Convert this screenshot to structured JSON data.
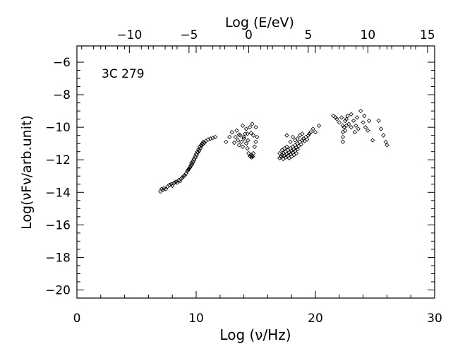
{
  "chart_data": {
    "type": "scatter",
    "title": "",
    "annotation": "3C 279",
    "xlabel": "Log (ν/Hz)",
    "ylabel": "Log(νFν/arb.unit)",
    "top_xlabel": "Log (E/eV)",
    "xlim": [
      0,
      30
    ],
    "ylim": [
      -20.5,
      -5
    ],
    "top_xlim": [
      -14.4,
      15.6
    ],
    "x_ticks": [
      0,
      10,
      20,
      30
    ],
    "y_ticks": [
      -20,
      -18,
      -16,
      -14,
      -12,
      -10,
      -8,
      -6
    ],
    "top_x_ticks": [
      -10,
      -5,
      0,
      5,
      10,
      15
    ],
    "tick_labels": {
      "x": [
        "0",
        "10",
        "20",
        "30"
      ],
      "y": [
        "−20",
        "−18",
        "−16",
        "−14",
        "−12",
        "−10",
        "−8",
        "−6"
      ],
      "top_x": [
        "−10",
        "−5",
        "0",
        "5",
        "10",
        "15"
      ]
    },
    "marker": "open-diamond",
    "color": "#000000",
    "grid": false,
    "points": [
      [
        7.0,
        -13.95
      ],
      [
        7.1,
        -13.8
      ],
      [
        7.2,
        -13.85
      ],
      [
        7.3,
        -13.75
      ],
      [
        7.45,
        -13.8
      ],
      [
        7.6,
        -13.65
      ],
      [
        7.75,
        -13.55
      ],
      [
        7.9,
        -13.5
      ],
      [
        8.0,
        -13.6
      ],
      [
        8.1,
        -13.45
      ],
      [
        8.2,
        -13.4
      ],
      [
        8.3,
        -13.35
      ],
      [
        8.4,
        -13.4
      ],
      [
        8.55,
        -13.25
      ],
      [
        8.65,
        -13.3
      ],
      [
        8.75,
        -13.15
      ],
      [
        8.85,
        -13.1
      ],
      [
        8.95,
        -13.0
      ],
      [
        9.05,
        -12.95
      ],
      [
        9.15,
        -12.85
      ],
      [
        9.25,
        -12.7
      ],
      [
        9.35,
        -12.6
      ],
      [
        9.45,
        -12.5
      ],
      [
        9.55,
        -12.35
      ],
      [
        9.6,
        -12.2
      ],
      [
        9.7,
        -12.1
      ],
      [
        9.8,
        -11.95
      ],
      [
        9.9,
        -11.8
      ],
      [
        10.0,
        -11.65
      ],
      [
        10.1,
        -11.5
      ],
      [
        10.2,
        -11.35
      ],
      [
        10.3,
        -11.2
      ],
      [
        10.4,
        -11.1
      ],
      [
        10.5,
        -11.0
      ],
      [
        10.6,
        -10.9
      ],
      [
        10.8,
        -10.85
      ],
      [
        11.0,
        -10.75
      ],
      [
        11.2,
        -10.7
      ],
      [
        11.4,
        -10.65
      ],
      [
        11.6,
        -10.6
      ],
      [
        9.5,
        -12.45
      ],
      [
        9.65,
        -12.3
      ],
      [
        9.75,
        -12.15
      ],
      [
        9.85,
        -12.0
      ],
      [
        9.95,
        -11.85
      ],
      [
        10.05,
        -11.7
      ],
      [
        10.15,
        -11.55
      ],
      [
        10.25,
        -11.45
      ],
      [
        10.35,
        -11.3
      ],
      [
        10.45,
        -11.15
      ],
      [
        9.4,
        -12.55
      ],
      [
        9.3,
        -12.65
      ],
      [
        10.55,
        -11.05
      ],
      [
        10.7,
        -10.95
      ],
      [
        12.5,
        -10.9
      ],
      [
        12.8,
        -10.6
      ],
      [
        13.0,
        -10.3
      ],
      [
        13.2,
        -10.95
      ],
      [
        13.3,
        -10.6
      ],
      [
        13.4,
        -10.2
      ],
      [
        13.5,
        -10.8
      ],
      [
        13.6,
        -11.1
      ],
      [
        13.7,
        -10.5
      ],
      [
        13.8,
        -10.9
      ],
      [
        13.9,
        -11.2
      ],
      [
        14.0,
        -10.7
      ],
      [
        14.1,
        -10.4
      ],
      [
        14.2,
        -11.0
      ],
      [
        14.3,
        -11.3
      ],
      [
        14.35,
        -10.8
      ],
      [
        14.4,
        -11.6
      ],
      [
        14.5,
        -11.75
      ],
      [
        14.55,
        -11.8
      ],
      [
        14.6,
        -11.7
      ],
      [
        14.65,
        -11.85
      ],
      [
        14.7,
        -11.75
      ],
      [
        14.75,
        -11.8
      ],
      [
        14.8,
        -11.6
      ],
      [
        14.9,
        -11.2
      ],
      [
        15.0,
        -10.9
      ],
      [
        14.3,
        -10.4
      ],
      [
        14.5,
        -10.0
      ],
      [
        14.6,
        -10.35
      ],
      [
        14.7,
        -9.8
      ],
      [
        14.8,
        -10.5
      ],
      [
        15.0,
        -10.0
      ],
      [
        15.1,
        -10.6
      ],
      [
        14.2,
        -10.1
      ],
      [
        13.9,
        -9.9
      ],
      [
        14.0,
        -10.6
      ],
      [
        13.6,
        -10.45
      ],
      [
        17.0,
        -11.9
      ],
      [
        17.1,
        -11.8
      ],
      [
        17.2,
        -11.7
      ],
      [
        17.3,
        -11.6
      ],
      [
        17.4,
        -11.75
      ],
      [
        17.5,
        -11.5
      ],
      [
        17.6,
        -11.65
      ],
      [
        17.7,
        -11.4
      ],
      [
        17.8,
        -11.55
      ],
      [
        17.9,
        -11.3
      ],
      [
        18.0,
        -11.45
      ],
      [
        18.1,
        -11.2
      ],
      [
        18.2,
        -11.35
      ],
      [
        18.3,
        -11.1
      ],
      [
        18.4,
        -11.25
      ],
      [
        18.5,
        -11.0
      ],
      [
        18.6,
        -11.15
      ],
      [
        18.7,
        -10.9
      ],
      [
        18.8,
        -11.05
      ],
      [
        18.9,
        -10.8
      ],
      [
        19.0,
        -10.7
      ],
      [
        19.1,
        -10.85
      ],
      [
        19.2,
        -10.6
      ],
      [
        19.3,
        -10.75
      ],
      [
        19.4,
        -10.5
      ],
      [
        19.5,
        -10.4
      ],
      [
        19.6,
        -10.3
      ],
      [
        19.8,
        -10.1
      ],
      [
        20.0,
        -10.3
      ],
      [
        20.3,
        -9.9
      ],
      [
        17.0,
        -11.6
      ],
      [
        17.2,
        -11.4
      ],
      [
        17.4,
        -11.3
      ],
      [
        17.6,
        -11.2
      ],
      [
        17.8,
        -11.9
      ],
      [
        18.0,
        -11.8
      ],
      [
        18.2,
        -11.7
      ],
      [
        18.4,
        -11.6
      ],
      [
        17.3,
        -11.95
      ],
      [
        17.5,
        -11.85
      ],
      [
        17.7,
        -11.75
      ],
      [
        17.9,
        -11.65
      ],
      [
        18.1,
        -11.55
      ],
      [
        18.3,
        -11.45
      ],
      [
        18.5,
        -11.35
      ],
      [
        17.9,
        -10.9
      ],
      [
        18.1,
        -10.6
      ],
      [
        18.3,
        -10.8
      ],
      [
        18.5,
        -10.7
      ],
      [
        18.7,
        -10.5
      ],
      [
        18.9,
        -10.4
      ],
      [
        17.6,
        -10.5
      ],
      [
        21.5,
        -9.3
      ],
      [
        21.8,
        -9.5
      ],
      [
        22.0,
        -9.7
      ],
      [
        22.2,
        -9.4
      ],
      [
        22.3,
        -9.9
      ],
      [
        22.3,
        -10.3
      ],
      [
        22.3,
        -10.6
      ],
      [
        22.3,
        -10.9
      ],
      [
        22.4,
        -10.0
      ],
      [
        22.5,
        -9.6
      ],
      [
        22.6,
        -9.5
      ],
      [
        22.7,
        -9.3
      ],
      [
        22.8,
        -9.8
      ],
      [
        23.0,
        -9.2
      ],
      [
        23.2,
        -9.6
      ],
      [
        23.4,
        -9.9
      ],
      [
        23.5,
        -9.4
      ],
      [
        23.6,
        -10.1
      ],
      [
        23.8,
        -9.0
      ],
      [
        24.0,
        -9.7
      ],
      [
        24.1,
        -9.3
      ],
      [
        24.2,
        -10.0
      ],
      [
        24.4,
        -10.2
      ],
      [
        24.5,
        -9.6
      ],
      [
        25.3,
        -9.6
      ],
      [
        25.5,
        -10.1
      ],
      [
        25.7,
        -10.5
      ],
      [
        25.9,
        -10.9
      ],
      [
        26.0,
        -11.1
      ],
      [
        22.5,
        -10.2
      ],
      [
        22.6,
        -9.9
      ],
      [
        23.0,
        -10.0
      ],
      [
        23.3,
        -10.3
      ],
      [
        24.8,
        -10.8
      ],
      [
        21.7,
        -9.4
      ]
    ]
  }
}
